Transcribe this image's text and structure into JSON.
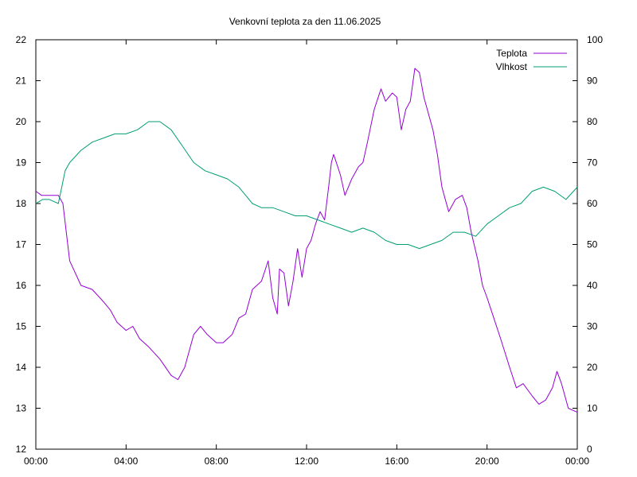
{
  "chart_data": {
    "type": "line",
    "title": "Venkovní teplota za den 11.06.2025",
    "x_ticks": [
      "00:00",
      "04:00",
      "08:00",
      "12:00",
      "16:00",
      "20:00",
      "00:00"
    ],
    "x_range_hours": [
      0,
      24
    ],
    "y_left": {
      "ticks": [
        "12",
        "13",
        "14",
        "15",
        "16",
        "17",
        "18",
        "19",
        "20",
        "21",
        "22"
      ],
      "range": [
        12,
        22
      ]
    },
    "y_right": {
      "ticks": [
        "0",
        "10",
        "20",
        "30",
        "40",
        "50",
        "60",
        "70",
        "80",
        "90",
        "100"
      ],
      "range": [
        0,
        100
      ]
    },
    "grid": false,
    "legend_position": "top-right",
    "series": [
      {
        "name": "Teplota",
        "axis": "left",
        "color": "#9400d3",
        "x": [
          0,
          0.25,
          1.0,
          1.2,
          1.5,
          2.0,
          2.5,
          3.0,
          3.3,
          3.6,
          4.0,
          4.3,
          4.6,
          5.0,
          5.5,
          6.0,
          6.3,
          6.6,
          7.0,
          7.3,
          7.6,
          8.0,
          8.3,
          8.7,
          9.0,
          9.3,
          9.6,
          10.0,
          10.3,
          10.5,
          10.7,
          10.8,
          11.0,
          11.2,
          11.4,
          11.6,
          11.8,
          12.0,
          12.2,
          12.4,
          12.6,
          12.8,
          13.0,
          13.1,
          13.2,
          13.5,
          13.7,
          14.0,
          14.3,
          14.5,
          14.7,
          15.0,
          15.3,
          15.5,
          15.8,
          16.0,
          16.2,
          16.4,
          16.6,
          16.8,
          17.0,
          17.2,
          17.4,
          17.6,
          17.8,
          18.0,
          18.3,
          18.6,
          18.9,
          19.1,
          19.3,
          19.6,
          19.8,
          20.0,
          20.3,
          20.6,
          21.0,
          21.3,
          21.6,
          22.0,
          22.3,
          22.6,
          22.9,
          23.1,
          23.3,
          23.6,
          24.0
        ],
        "values": [
          18.3,
          18.2,
          18.2,
          18.0,
          16.6,
          16.0,
          15.9,
          15.6,
          15.4,
          15.1,
          14.9,
          15.0,
          14.7,
          14.5,
          14.2,
          13.8,
          13.7,
          14.0,
          14.8,
          15.0,
          14.8,
          14.6,
          14.6,
          14.8,
          15.2,
          15.3,
          15.9,
          16.1,
          16.6,
          15.7,
          15.3,
          16.4,
          16.3,
          15.5,
          16.1,
          16.9,
          16.2,
          16.9,
          17.1,
          17.5,
          17.8,
          17.6,
          18.5,
          19.0,
          19.2,
          18.7,
          18.2,
          18.6,
          18.9,
          19.0,
          19.5,
          20.3,
          20.8,
          20.5,
          20.7,
          20.6,
          19.8,
          20.3,
          20.5,
          21.3,
          21.2,
          20.6,
          20.2,
          19.8,
          19.2,
          18.4,
          17.8,
          18.1,
          18.2,
          17.9,
          17.3,
          16.6,
          16.0,
          15.7,
          15.2,
          14.7,
          14.0,
          13.5,
          13.6,
          13.3,
          13.1,
          13.2,
          13.5,
          13.9,
          13.6,
          13.0,
          12.9
        ]
      },
      {
        "name": "Vlhkost",
        "axis": "right",
        "color": "#009e73",
        "x": [
          0,
          0.3,
          0.6,
          1.0,
          1.3,
          1.5,
          2.0,
          2.5,
          3.0,
          3.5,
          4.0,
          4.5,
          5.0,
          5.5,
          6.0,
          6.5,
          7.0,
          7.5,
          8.0,
          8.5,
          9.0,
          9.3,
          9.6,
          10.0,
          10.5,
          11.0,
          11.5,
          12.0,
          12.5,
          13.0,
          13.5,
          14.0,
          14.5,
          15.0,
          15.5,
          16.0,
          16.5,
          17.0,
          17.5,
          18.0,
          18.5,
          19.0,
          19.5,
          20.0,
          20.5,
          21.0,
          21.5,
          22.0,
          22.5,
          23.0,
          23.5,
          24.0
        ],
        "values": [
          60,
          61,
          61,
          60,
          68,
          70,
          73,
          75,
          76,
          77,
          77,
          78,
          80,
          80,
          78,
          74,
          70,
          68,
          67,
          66,
          64,
          62,
          60,
          59,
          59,
          58,
          57,
          57,
          56,
          55,
          54,
          53,
          54,
          53,
          51,
          50,
          50,
          49,
          50,
          51,
          53,
          53,
          52,
          55,
          57,
          59,
          60,
          63,
          64,
          63,
          61,
          64
        ]
      }
    ]
  }
}
